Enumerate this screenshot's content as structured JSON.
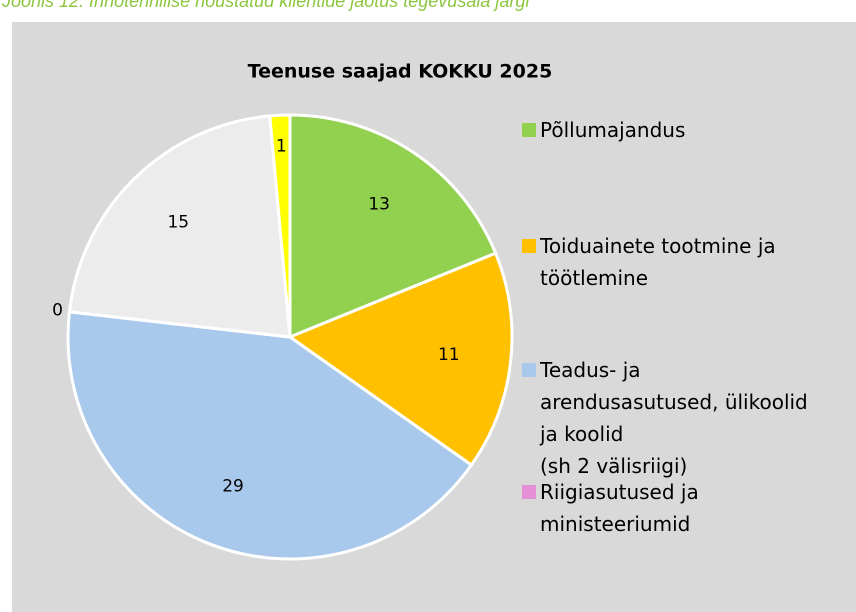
{
  "caption": "Joonis 12. Innotehnilise nõustatud klientide jaotus tegevusala järgi",
  "chart_data": {
    "type": "pie",
    "title": "Teenuse saajad KOKKU 2025",
    "categories": [
      "Põllumajandus",
      "Toiduainete tootmine ja\ntöötlemine",
      "Teadus- ja\narendusasutused, ülikoolid\nja koolid\n(sh 2 välisriigi)",
      "Riigiasutused ja\nministeeriumid",
      null,
      null
    ],
    "values": [
      13,
      11,
      29,
      0,
      15,
      1
    ],
    "colors": [
      "#92d050",
      "#ffc000",
      "#a9c9ec",
      "#e58fd6",
      "#ececec",
      "#ffff00"
    ]
  }
}
